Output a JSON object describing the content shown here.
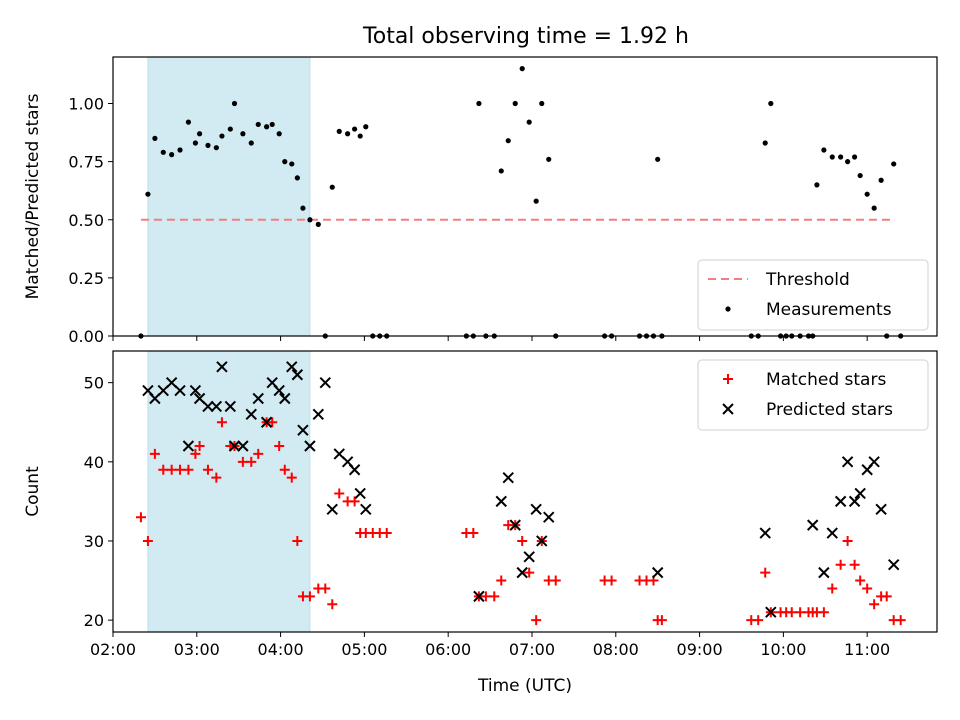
{
  "title": "Total observing time = 1.92 h",
  "chart_data": [
    {
      "type": "scatter",
      "ylabel": "Matched/Predicted stars",
      "xlim": [
        "02:00",
        "11:50"
      ],
      "ylim": [
        0,
        1.2
      ],
      "yticks": [
        "0.00",
        "0.25",
        "0.50",
        "0.75",
        "1.00"
      ],
      "grid": false,
      "legend_position": "lower-right",
      "highlight_span": {
        "start": "02:25",
        "end": "04:21",
        "color": "#add8e6"
      },
      "threshold": {
        "name": "Threshold",
        "y": 0.5,
        "x_start": "02:20",
        "x_end": "11:20",
        "color": "#f08080",
        "style": "dashed"
      },
      "series": [
        {
          "name": "Measurements",
          "color": "#000000",
          "marker": "dot",
          "points": [
            [
              "02:20",
              0
            ],
            [
              "02:25",
              0.61
            ],
            [
              "02:30",
              0.85
            ],
            [
              "02:36",
              0.79
            ],
            [
              "02:42",
              0.78
            ],
            [
              "02:48",
              0.8
            ],
            [
              "02:54",
              0.92
            ],
            [
              "02:59",
              0.83
            ],
            [
              "03:02",
              0.87
            ],
            [
              "03:08",
              0.82
            ],
            [
              "03:14",
              0.81
            ],
            [
              "03:18",
              0.86
            ],
            [
              "03:24",
              0.89
            ],
            [
              "03:27",
              1.0
            ],
            [
              "03:33",
              0.87
            ],
            [
              "03:39",
              0.83
            ],
            [
              "03:44",
              0.91
            ],
            [
              "03:50",
              0.9
            ],
            [
              "03:54",
              0.91
            ],
            [
              "03:59",
              0.87
            ],
            [
              "04:03",
              0.75
            ],
            [
              "04:08",
              0.74
            ],
            [
              "04:12",
              0.68
            ],
            [
              "04:16",
              0.55
            ],
            [
              "04:21",
              0.5
            ],
            [
              "04:27",
              0.48
            ],
            [
              "04:32",
              0
            ],
            [
              "04:37",
              0.64
            ],
            [
              "04:42",
              0.88
            ],
            [
              "04:48",
              0.87
            ],
            [
              "04:53",
              0.89
            ],
            [
              "04:57",
              0.86
            ],
            [
              "05:01",
              0.9
            ],
            [
              "05:06",
              0
            ],
            [
              "05:11",
              0
            ],
            [
              "05:16",
              0
            ],
            [
              "06:13",
              0
            ],
            [
              "06:18",
              0
            ],
            [
              "06:22",
              1.0
            ],
            [
              "06:27",
              0
            ],
            [
              "06:33",
              0
            ],
            [
              "06:38",
              0.71
            ],
            [
              "06:43",
              0.84
            ],
            [
              "06:48",
              1.0
            ],
            [
              "06:53",
              1.15
            ],
            [
              "06:58",
              0.92
            ],
            [
              "07:03",
              0.58
            ],
            [
              "07:07",
              1.0
            ],
            [
              "07:12",
              0.76
            ],
            [
              "07:17",
              0
            ],
            [
              "07:52",
              0
            ],
            [
              "07:57",
              0
            ],
            [
              "08:17",
              0
            ],
            [
              "08:22",
              0
            ],
            [
              "08:27",
              0
            ],
            [
              "08:30",
              0.76
            ],
            [
              "08:33",
              0
            ],
            [
              "09:37",
              0
            ],
            [
              "09:42",
              0
            ],
            [
              "09:47",
              0.83
            ],
            [
              "09:51",
              1.0
            ],
            [
              "09:58",
              0
            ],
            [
              "10:02",
              0
            ],
            [
              "10:06",
              0
            ],
            [
              "10:12",
              0
            ],
            [
              "10:18",
              0
            ],
            [
              "10:21",
              0
            ],
            [
              "10:24",
              0.65
            ],
            [
              "10:29",
              0.8
            ],
            [
              "10:35",
              0.77
            ],
            [
              "10:41",
              0.77
            ],
            [
              "10:46",
              0.75
            ],
            [
              "10:51",
              0.77
            ],
            [
              "10:55",
              0.69
            ],
            [
              "11:00",
              0.61
            ],
            [
              "11:05",
              0.55
            ],
            [
              "11:10",
              0.67
            ],
            [
              "11:14",
              0
            ],
            [
              "11:19",
              0.74
            ],
            [
              "11:24",
              0
            ]
          ]
        }
      ],
      "legend": [
        {
          "label": "Threshold",
          "kind": "line",
          "color": "#f08080"
        },
        {
          "label": "Measurements",
          "kind": "dot",
          "color": "#000000"
        }
      ]
    },
    {
      "type": "scatter",
      "xlabel": "Time (UTC)",
      "ylabel": "Count",
      "xlim": [
        "02:00",
        "11:50"
      ],
      "ylim": [
        18.5,
        54
      ],
      "yticks": [
        "20",
        "30",
        "40",
        "50"
      ],
      "xticks": [
        "02:00",
        "03:00",
        "04:00",
        "05:00",
        "06:00",
        "07:00",
        "08:00",
        "09:00",
        "10:00",
        "11:00"
      ],
      "grid": false,
      "legend_position": "top-right",
      "highlight_span": {
        "start": "02:25",
        "end": "04:21",
        "color": "#add8e6"
      },
      "series": [
        {
          "name": "Matched stars",
          "color": "#ff0000",
          "marker": "plus",
          "points": [
            [
              "02:20",
              33
            ],
            [
              "02:25",
              30
            ],
            [
              "02:30",
              41
            ],
            [
              "02:36",
              39
            ],
            [
              "02:42",
              39
            ],
            [
              "02:48",
              39
            ],
            [
              "02:54",
              39
            ],
            [
              "02:59",
              41
            ],
            [
              "03:02",
              42
            ],
            [
              "03:08",
              39
            ],
            [
              "03:14",
              38
            ],
            [
              "03:18",
              45
            ],
            [
              "03:24",
              42
            ],
            [
              "03:27",
              42
            ],
            [
              "03:33",
              40
            ],
            [
              "03:39",
              40
            ],
            [
              "03:44",
              41
            ],
            [
              "03:50",
              45
            ],
            [
              "03:54",
              45
            ],
            [
              "03:59",
              42
            ],
            [
              "04:03",
              39
            ],
            [
              "04:08",
              38
            ],
            [
              "04:12",
              30
            ],
            [
              "04:16",
              23
            ],
            [
              "04:21",
              23
            ],
            [
              "04:27",
              24
            ],
            [
              "04:32",
              24
            ],
            [
              "04:37",
              22
            ],
            [
              "04:42",
              36
            ],
            [
              "04:48",
              35
            ],
            [
              "04:53",
              35
            ],
            [
              "04:57",
              31
            ],
            [
              "05:01",
              31
            ],
            [
              "05:06",
              31
            ],
            [
              "05:11",
              31
            ],
            [
              "05:16",
              31
            ],
            [
              "06:13",
              31
            ],
            [
              "06:18",
              31
            ],
            [
              "06:22",
              23
            ],
            [
              "06:27",
              23
            ],
            [
              "06:33",
              23
            ],
            [
              "06:38",
              25
            ],
            [
              "06:43",
              32
            ],
            [
              "06:48",
              32
            ],
            [
              "06:53",
              30
            ],
            [
              "06:58",
              26
            ],
            [
              "07:03",
              20
            ],
            [
              "07:07",
              30
            ],
            [
              "07:12",
              25
            ],
            [
              "07:17",
              25
            ],
            [
              "07:52",
              25
            ],
            [
              "07:57",
              25
            ],
            [
              "08:17",
              25
            ],
            [
              "08:22",
              25
            ],
            [
              "08:27",
              25
            ],
            [
              "08:30",
              20
            ],
            [
              "08:33",
              20
            ],
            [
              "09:37",
              20
            ],
            [
              "09:42",
              20
            ],
            [
              "09:47",
              26
            ],
            [
              "09:51",
              21
            ],
            [
              "09:58",
              21
            ],
            [
              "10:02",
              21
            ],
            [
              "10:06",
              21
            ],
            [
              "10:12",
              21
            ],
            [
              "10:18",
              21
            ],
            [
              "10:21",
              21
            ],
            [
              "10:24",
              21
            ],
            [
              "10:29",
              21
            ],
            [
              "10:35",
              24
            ],
            [
              "10:41",
              27
            ],
            [
              "10:46",
              30
            ],
            [
              "10:51",
              27
            ],
            [
              "10:55",
              25
            ],
            [
              "11:00",
              24
            ],
            [
              "11:05",
              22
            ],
            [
              "11:10",
              23
            ],
            [
              "11:14",
              23
            ],
            [
              "11:19",
              20
            ],
            [
              "11:24",
              20
            ]
          ]
        },
        {
          "name": "Predicted stars",
          "color": "#000000",
          "marker": "x",
          "points": [
            [
              "02:25",
              49
            ],
            [
              "02:30",
              48
            ],
            [
              "02:36",
              49
            ],
            [
              "02:42",
              50
            ],
            [
              "02:48",
              49
            ],
            [
              "02:54",
              42
            ],
            [
              "02:59",
              49
            ],
            [
              "03:02",
              48
            ],
            [
              "03:08",
              47
            ],
            [
              "03:14",
              47
            ],
            [
              "03:18",
              52
            ],
            [
              "03:24",
              47
            ],
            [
              "03:27",
              42
            ],
            [
              "03:33",
              42
            ],
            [
              "03:39",
              46
            ],
            [
              "03:44",
              48
            ],
            [
              "03:50",
              45
            ],
            [
              "03:54",
              50
            ],
            [
              "03:59",
              49
            ],
            [
              "04:03",
              48
            ],
            [
              "04:08",
              52
            ],
            [
              "04:12",
              51
            ],
            [
              "04:16",
              44
            ],
            [
              "04:21",
              42
            ],
            [
              "04:27",
              46
            ],
            [
              "04:32",
              50
            ],
            [
              "04:37",
              34
            ],
            [
              "04:42",
              41
            ],
            [
              "04:48",
              40
            ],
            [
              "04:53",
              39
            ],
            [
              "04:57",
              36
            ],
            [
              "05:01",
              34
            ],
            [
              "06:22",
              23
            ],
            [
              "06:38",
              35
            ],
            [
              "06:43",
              38
            ],
            [
              "06:48",
              32
            ],
            [
              "06:53",
              26
            ],
            [
              "06:58",
              28
            ],
            [
              "07:03",
              34
            ],
            [
              "07:07",
              30
            ],
            [
              "07:12",
              33
            ],
            [
              "08:30",
              26
            ],
            [
              "09:47",
              31
            ],
            [
              "09:51",
              21
            ],
            [
              "10:21",
              32
            ],
            [
              "10:29",
              26
            ],
            [
              "10:35",
              31
            ],
            [
              "10:41",
              35
            ],
            [
              "10:46",
              40
            ],
            [
              "10:51",
              35
            ],
            [
              "10:55",
              36
            ],
            [
              "11:00",
              39
            ],
            [
              "11:05",
              40
            ],
            [
              "11:10",
              34
            ],
            [
              "11:19",
              27
            ]
          ]
        }
      ],
      "legend": [
        {
          "label": "Matched stars",
          "kind": "plus",
          "color": "#ff0000"
        },
        {
          "label": "Predicted stars",
          "kind": "x",
          "color": "#000000"
        }
      ]
    }
  ]
}
